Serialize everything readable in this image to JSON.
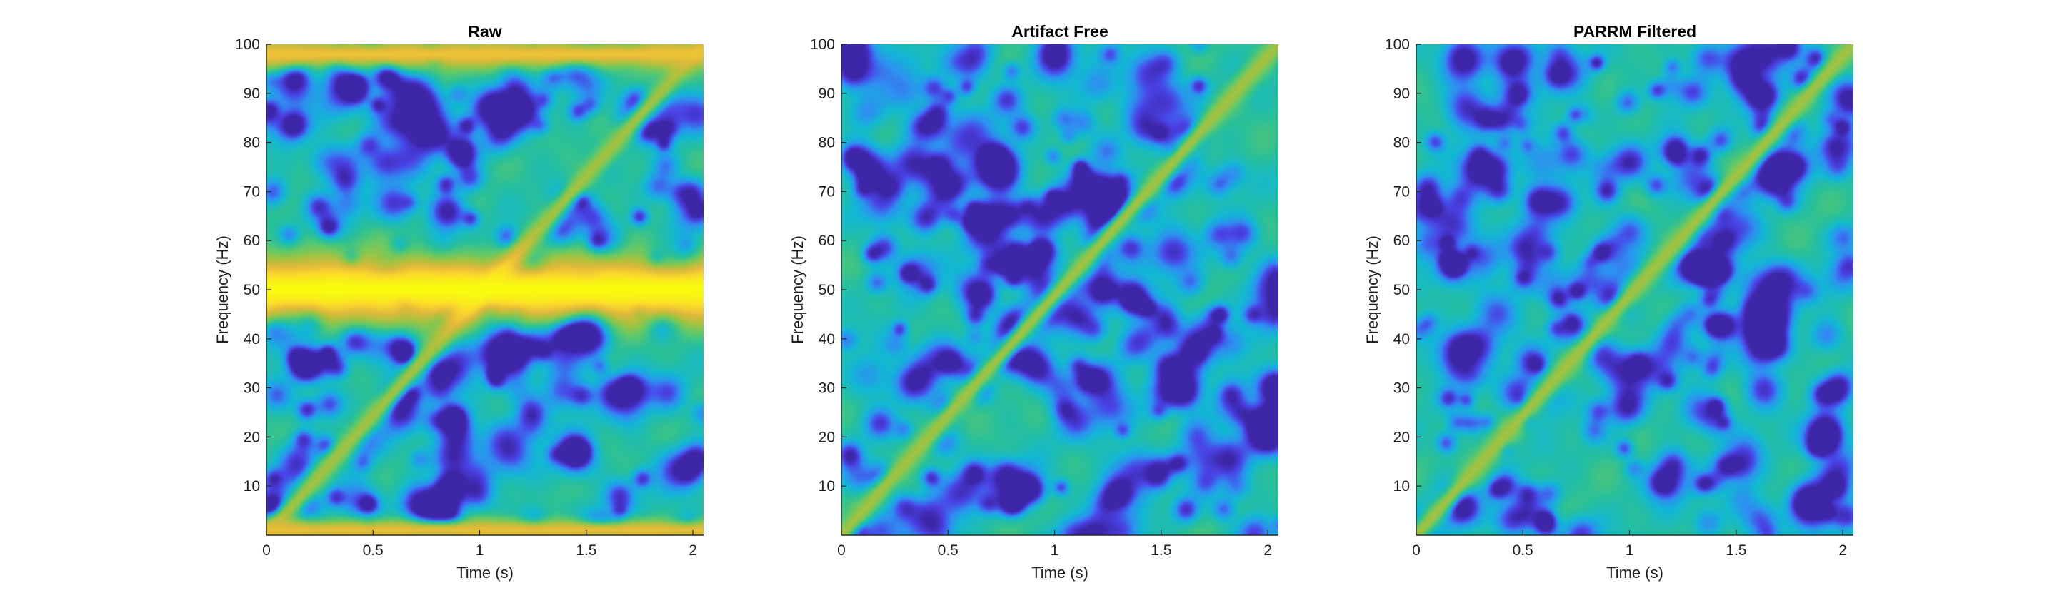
{
  "colors": {
    "colormap": [
      "#3e26a8",
      "#4a43e6",
      "#2f8ff2",
      "#12b7d5",
      "#29c09a",
      "#63c967",
      "#a7c23f",
      "#e1b93b",
      "#fbd92c",
      "#f9fb0e"
    ],
    "axis": "#262626"
  },
  "chart_data": [
    {
      "type": "heatmap",
      "title": "Raw",
      "xlabel": "Time (s)",
      "ylabel": "Frequency (Hz)",
      "xlim": [
        0,
        2.05
      ],
      "ylim": [
        0,
        100
      ],
      "xticks": [
        0,
        0.5,
        1,
        1.5,
        2
      ],
      "xtick_labels": [
        "0",
        "0.5",
        "1",
        "1.5",
        "2"
      ],
      "yticks": [
        10,
        20,
        30,
        40,
        50,
        60,
        70,
        80,
        90,
        100
      ],
      "ytick_labels": [
        "10",
        "20",
        "30",
        "40",
        "50",
        "60",
        "70",
        "80",
        "90",
        "100"
      ],
      "features": {
        "chirp": {
          "start": [
            0,
            0
          ],
          "end": [
            2.05,
            100
          ],
          "level": 0.66
        },
        "bands": [
          {
            "center_hz": 50,
            "width_hz": 9,
            "level": 1.0
          },
          {
            "center_hz": 98,
            "width_hz": 4,
            "level": 0.82
          },
          {
            "center_hz": 1,
            "width_hz": 3,
            "level": 0.8
          }
        ],
        "background_level": 0.43,
        "blob_count": 230,
        "noise_seed": 11
      }
    },
    {
      "type": "heatmap",
      "title": "Artifact Free",
      "xlabel": "Time (s)",
      "ylabel": "Frequency (Hz)",
      "xlim": [
        0,
        2.05
      ],
      "ylim": [
        0,
        100
      ],
      "xticks": [
        0,
        0.5,
        1,
        1.5,
        2
      ],
      "xtick_labels": [
        "0",
        "0.5",
        "1",
        "1.5",
        "2"
      ],
      "yticks": [
        10,
        20,
        30,
        40,
        50,
        60,
        70,
        80,
        90,
        100
      ],
      "ytick_labels": [
        "10",
        "20",
        "30",
        "40",
        "50",
        "60",
        "70",
        "80",
        "90",
        "100"
      ],
      "features": {
        "chirp": {
          "start": [
            0,
            0
          ],
          "end": [
            2.05,
            100
          ],
          "level": 0.66
        },
        "bands": [],
        "background_level": 0.43,
        "blob_count": 230,
        "noise_seed": 29
      }
    },
    {
      "type": "heatmap",
      "title": "PARRM Filtered",
      "xlabel": "Time (s)",
      "ylabel": "Frequency (Hz)",
      "xlim": [
        0,
        2.05
      ],
      "ylim": [
        0,
        100
      ],
      "xticks": [
        0,
        0.5,
        1,
        1.5,
        2
      ],
      "xtick_labels": [
        "0",
        "0.5",
        "1",
        "1.5",
        "2"
      ],
      "yticks": [
        10,
        20,
        30,
        40,
        50,
        60,
        70,
        80,
        90,
        100
      ],
      "ytick_labels": [
        "10",
        "20",
        "30",
        "40",
        "50",
        "60",
        "70",
        "80",
        "90",
        "100"
      ],
      "features": {
        "chirp": {
          "start": [
            0,
            0
          ],
          "end": [
            2.05,
            100
          ],
          "level": 0.66
        },
        "bands": [],
        "background_level": 0.43,
        "blob_count": 230,
        "noise_seed": 47
      }
    }
  ]
}
